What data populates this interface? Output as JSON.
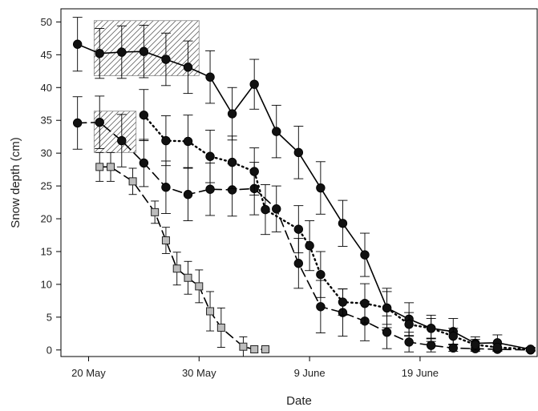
{
  "chart_data": {
    "type": "line",
    "xlabel": "Date",
    "ylabel": "Snow depth (cm)",
    "xticks": [
      {
        "day": 0,
        "label": "20 May"
      },
      {
        "day": 10,
        "label": "30 May"
      },
      {
        "day": 20,
        "label": "9 June"
      },
      {
        "day": 30,
        "label": "19 June"
      }
    ],
    "yticks": [
      0,
      5,
      10,
      15,
      20,
      25,
      30,
      35,
      40,
      45,
      50
    ],
    "xlim": [
      -2.5,
      40.6
    ],
    "ylim": [
      -1,
      52
    ],
    "shaded_regions": [
      {
        "x": [
          0.5,
          10
        ],
        "y": [
          41.8,
          50.2
        ]
      },
      {
        "x": [
          0.5,
          4.3
        ],
        "y": [
          30.1,
          36.4
        ]
      }
    ],
    "series": [
      {
        "marker": "circle",
        "style": "solid",
        "x": [
          -1,
          1,
          3,
          5,
          7,
          9,
          11,
          13,
          15,
          17,
          19,
          21,
          23,
          25,
          27,
          29,
          31,
          33,
          35,
          37,
          40
        ],
        "y": [
          46.6,
          45.2,
          45.4,
          45.5,
          44.3,
          43.1,
          41.6,
          36.0,
          40.5,
          33.3,
          30.1,
          24.7,
          19.3,
          14.5,
          6.4,
          4.7,
          3.3,
          2.8,
          1.0,
          1.1,
          0.1
        ],
        "err": [
          4.1,
          3.8,
          4.0,
          4.0,
          4.0,
          4.0,
          4.0,
          4.0,
          3.8,
          4.0,
          4.0,
          4.0,
          3.5,
          3.3,
          3.0,
          2.5,
          2.0,
          2.0,
          1.0,
          1.2,
          0.3
        ]
      },
      {
        "marker": "circle",
        "style": "dashed",
        "x": [
          -1,
          1,
          3,
          5,
          7,
          9,
          11,
          13,
          15,
          17,
          19,
          21,
          23,
          25,
          27,
          29,
          31,
          33,
          35,
          37,
          40
        ],
        "y": [
          34.6,
          34.7,
          31.9,
          28.5,
          24.8,
          23.7,
          24.5,
          24.4,
          24.6,
          21.5,
          13.2,
          6.6,
          5.7,
          4.4,
          2.7,
          1.2,
          0.7,
          0.3,
          0.2,
          0.1,
          0.0
        ],
        "err": [
          4.0,
          4.0,
          4.0,
          3.6,
          4.0,
          4.0,
          4.0,
          4.0,
          4.0,
          3.5,
          3.8,
          4.0,
          3.6,
          3.0,
          2.5,
          1.5,
          1.0,
          0.5,
          0.4,
          0.3,
          0.1
        ]
      },
      {
        "marker": "circle",
        "style": "dotted",
        "x": [
          5,
          7,
          9,
          11,
          13,
          15,
          16,
          19,
          20,
          21,
          23,
          25,
          27,
          29,
          31,
          33,
          35,
          37,
          40
        ],
        "y": [
          35.8,
          31.9,
          31.8,
          29.5,
          28.6,
          27.2,
          21.4,
          18.4,
          15.9,
          11.5,
          7.3,
          7.1,
          6.4,
          3.9,
          3.3,
          2.1,
          0.8,
          0.4,
          0.1
        ],
        "err": [
          3.9,
          3.8,
          4.0,
          4.0,
          4.0,
          3.6,
          3.8,
          3.6,
          3.8,
          3.5,
          2.0,
          3.0,
          2.5,
          1.8,
          1.5,
          1.2,
          0.8,
          0.5,
          0.2
        ]
      },
      {
        "marker": "square",
        "style": "dashed",
        "x": [
          1,
          2,
          4,
          6,
          7,
          8,
          9,
          10,
          11,
          12,
          14,
          15,
          16
        ],
        "y": [
          27.9,
          27.9,
          25.7,
          21.0,
          16.7,
          12.4,
          11.0,
          9.7,
          5.9,
          3.4,
          0.5,
          0.1,
          0.1
        ],
        "err": [
          2.2,
          2.2,
          2.0,
          1.7,
          2.0,
          2.5,
          2.5,
          2.5,
          3.0,
          3.0,
          1.5,
          0.5,
          0.3
        ]
      }
    ]
  }
}
